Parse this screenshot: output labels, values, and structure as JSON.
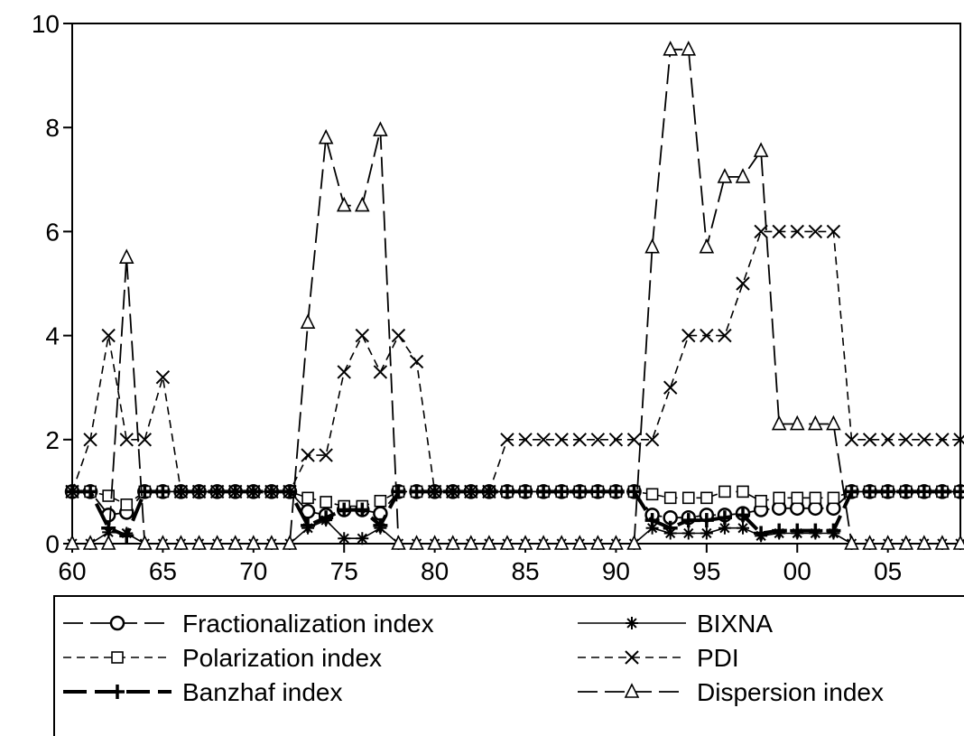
{
  "chart_data": {
    "type": "line",
    "x": [
      1960,
      1961,
      1962,
      1963,
      1964,
      1965,
      1966,
      1967,
      1968,
      1969,
      1970,
      1971,
      1972,
      1973,
      1974,
      1975,
      1976,
      1977,
      1978,
      1979,
      1980,
      1981,
      1982,
      1983,
      1984,
      1985,
      1986,
      1987,
      1988,
      1989,
      1990,
      1991,
      1992,
      1993,
      1994,
      1995,
      1996,
      1997,
      1998,
      1999,
      2000,
      2001,
      2002,
      2003,
      2004,
      2005,
      2006,
      2007,
      2008,
      2009
    ],
    "xlim": [
      1960,
      2009
    ],
    "ylim": [
      0,
      10
    ],
    "xticks": [
      1960,
      1965,
      1970,
      1975,
      1980,
      1985,
      1990,
      1995,
      2000,
      2005
    ],
    "xtick_labels": [
      "60",
      "65",
      "70",
      "75",
      "80",
      "85",
      "90",
      "95",
      "00",
      "05"
    ],
    "yticks": [
      0,
      2,
      4,
      6,
      8,
      10
    ],
    "ytick_labels": [
      "0",
      "2",
      "4",
      "6",
      "8",
      "10"
    ],
    "grid": false,
    "legend_position": "bottom",
    "series": [
      {
        "name": "Fractionalization index",
        "color": "#000000",
        "line": "long-dash",
        "marker": "circle",
        "values": [
          1,
          1,
          0.55,
          0.6,
          1,
          1,
          1,
          1,
          1,
          1,
          1,
          1,
          1,
          0.62,
          0.55,
          0.65,
          0.65,
          0.58,
          1,
          1,
          1,
          1,
          1,
          1,
          1,
          1,
          1,
          1,
          1,
          1,
          1,
          1,
          0.55,
          0.5,
          0.5,
          0.55,
          0.55,
          0.58,
          0.65,
          0.68,
          0.68,
          0.68,
          0.68,
          1,
          1,
          1,
          1,
          1,
          1,
          1
        ]
      },
      {
        "name": "BIXNA",
        "color": "#000000",
        "line": "solid",
        "marker": "star",
        "values": [
          0,
          0,
          0.22,
          0.2,
          0,
          0,
          0,
          0,
          0,
          0,
          0,
          0,
          0,
          0.3,
          0.45,
          0.1,
          0.1,
          0.3,
          0,
          0,
          0,
          0,
          0,
          0,
          0,
          0,
          0,
          0,
          0,
          0,
          0,
          0,
          0.3,
          0.2,
          0.2,
          0.2,
          0.3,
          0.3,
          0.15,
          0.2,
          0.2,
          0.2,
          0.2,
          0,
          0,
          0,
          0,
          0,
          0,
          0
        ]
      },
      {
        "name": "Polarization index",
        "color": "#000000",
        "line": "dash",
        "marker": "square",
        "values": [
          1,
          1,
          0.92,
          0.75,
          1,
          1,
          1,
          1,
          1,
          1,
          1,
          1,
          1,
          0.88,
          0.8,
          0.72,
          0.72,
          0.82,
          1,
          1,
          1,
          1,
          1,
          1,
          1,
          1,
          1,
          1,
          1,
          1,
          1,
          1,
          0.95,
          0.88,
          0.88,
          0.88,
          1,
          1,
          0.82,
          0.88,
          0.88,
          0.88,
          0.88,
          1,
          1,
          1,
          1,
          1,
          1,
          1
        ]
      },
      {
        "name": "PDI",
        "color": "#000000",
        "line": "dash",
        "marker": "x",
        "values": [
          1,
          2,
          4,
          2,
          2,
          3.2,
          1,
          1,
          1,
          1,
          1,
          1,
          1,
          1.7,
          1.7,
          3.3,
          4,
          3.3,
          4,
          3.5,
          1,
          1,
          1,
          1,
          2,
          2,
          2,
          2,
          2,
          2,
          2,
          2,
          2,
          3,
          4,
          4,
          4,
          5,
          6,
          6,
          6,
          6,
          6,
          2,
          2,
          2,
          2,
          2,
          2,
          2
        ]
      },
      {
        "name": "Banzhaf index",
        "color": "#000000",
        "line": "thick-long-dash",
        "marker": "plus",
        "values": [
          1,
          1,
          0.3,
          0.15,
          1,
          1,
          1,
          1,
          1,
          1,
          1,
          1,
          1,
          0.35,
          0.5,
          0.65,
          0.65,
          0.35,
          1,
          1,
          1,
          1,
          1,
          1,
          1,
          1,
          1,
          1,
          1,
          1,
          1,
          1,
          0.45,
          0.3,
          0.45,
          0.45,
          0.5,
          0.55,
          0.2,
          0.25,
          0.25,
          0.25,
          0.25,
          1,
          1,
          1,
          1,
          1,
          1,
          1
        ]
      },
      {
        "name": "Dispersion index",
        "color": "#000000",
        "line": "long-dash",
        "marker": "triangle",
        "values": [
          0,
          0,
          0,
          5.5,
          0,
          0,
          0,
          0,
          0,
          0,
          0,
          0,
          0,
          4.25,
          7.8,
          6.5,
          6.5,
          7.95,
          0,
          0,
          0,
          0,
          0,
          0,
          0,
          0,
          0,
          0,
          0,
          0,
          0,
          0,
          5.7,
          9.5,
          9.5,
          5.7,
          7.05,
          7.05,
          7.55,
          2.3,
          2.3,
          2.3,
          2.3,
          0,
          0,
          0,
          0,
          0,
          0,
          0
        ]
      }
    ]
  }
}
